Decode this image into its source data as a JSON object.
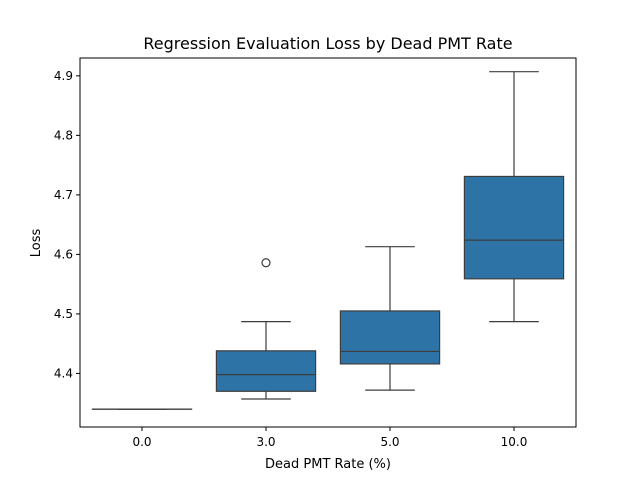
{
  "chart_data": {
    "type": "box",
    "title": "Regression Evaluation Loss by Dead PMT Rate",
    "xlabel": "Dead PMT Rate (%)",
    "ylabel": "Loss",
    "categories": [
      "0.0",
      "3.0",
      "5.0",
      "10.0"
    ],
    "yticks": [
      "4.4",
      "4.5",
      "4.6",
      "4.7",
      "4.8",
      "4.9"
    ],
    "ylim": [
      4.31,
      4.93
    ],
    "grid": false,
    "box_color": "#2e73a6",
    "line_color": "#3d3d3d",
    "boxes": [
      {
        "category": "0.0",
        "whisker_low": 4.34,
        "q1": 4.34,
        "median": 4.34,
        "q3": 4.34,
        "whisker_high": 4.34,
        "outliers": []
      },
      {
        "category": "3.0",
        "whisker_low": 4.357,
        "q1": 4.37,
        "median": 4.398,
        "q3": 4.438,
        "whisker_high": 4.487,
        "outliers": [
          4.586
        ]
      },
      {
        "category": "5.0",
        "whisker_low": 4.372,
        "q1": 4.416,
        "median": 4.437,
        "q3": 4.505,
        "whisker_high": 4.613,
        "outliers": []
      },
      {
        "category": "10.0",
        "whisker_low": 4.487,
        "q1": 4.559,
        "median": 4.624,
        "q3": 4.731,
        "whisker_high": 4.907,
        "outliers": []
      }
    ]
  }
}
